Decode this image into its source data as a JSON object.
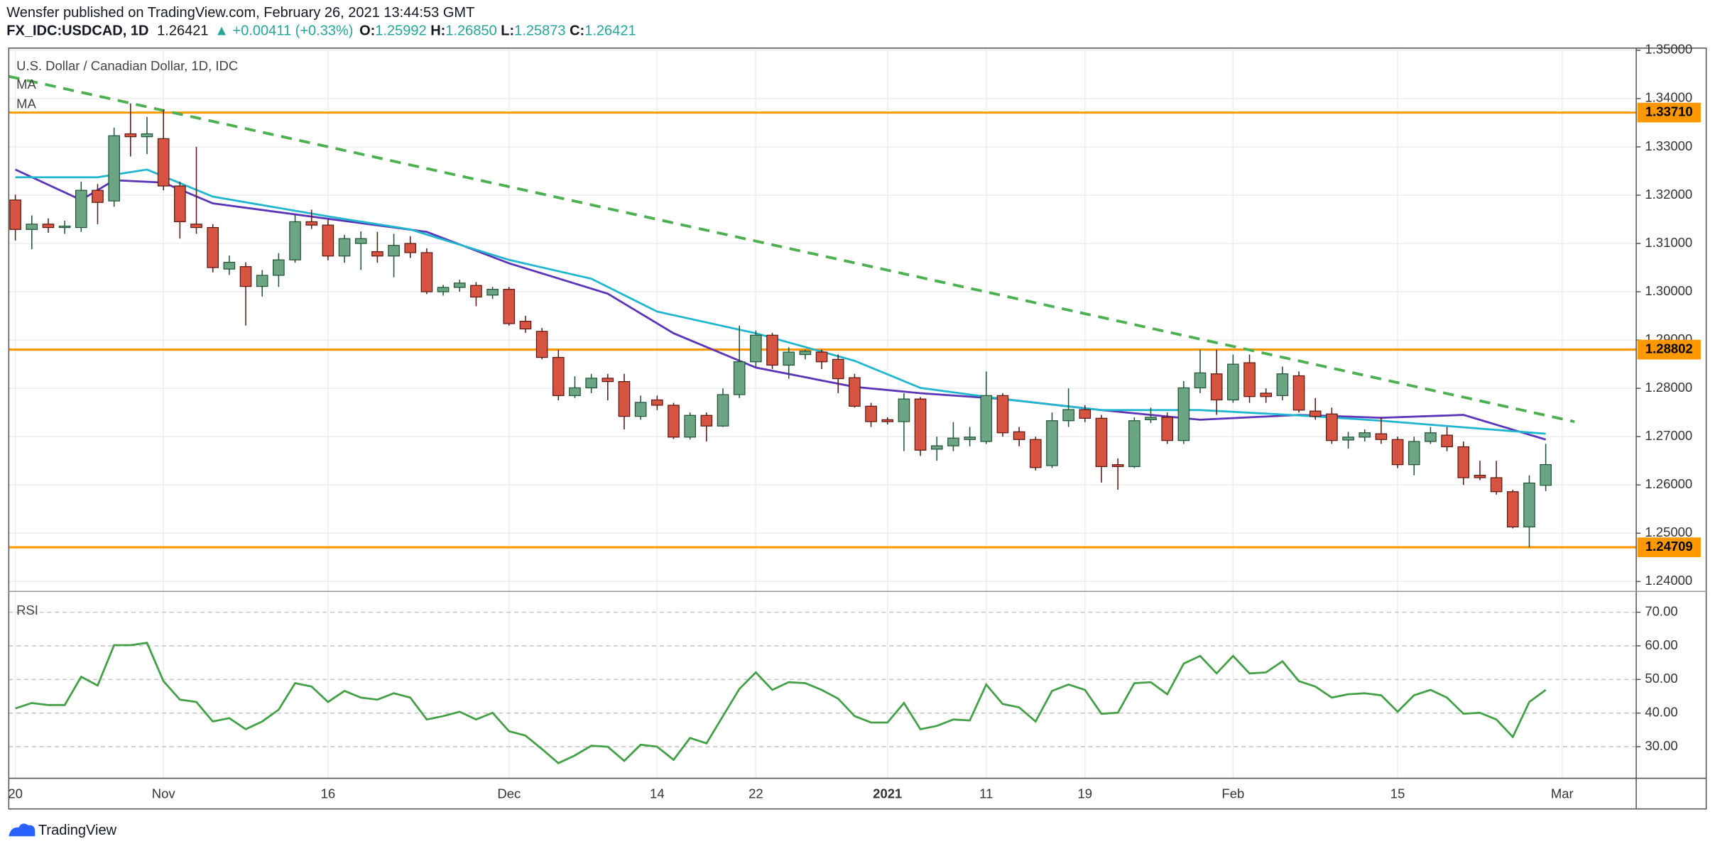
{
  "header": {
    "published": "Wensfer published on TradingView.com, February 26, 2021 13:44:53 GMT",
    "symbol": "FX_IDC:USDCAD, 1D",
    "last": "1.26421",
    "change": "▲ +0.00411 (+0.33%)",
    "ohlc": [
      {
        "label": "O:",
        "value": "1.25992"
      },
      {
        "label": "H:",
        "value": "1.26850"
      },
      {
        "label": "L:",
        "value": "1.25873"
      },
      {
        "label": "C:",
        "value": "1.26421"
      }
    ]
  },
  "footer": {
    "brand": "TradingView"
  },
  "chart_data": {
    "type": "candlestick",
    "title": "U.S. Dollar / Canadian Dollar, 1D, IDC",
    "up_color": "#6ba583",
    "down_color": "#d75442",
    "up_border": "#225437",
    "down_border": "#5b1a13",
    "open": [
      1.319,
      1.3129,
      1.314,
      1.3133,
      1.3133,
      1.321,
      1.3188,
      1.3327,
      1.3321,
      1.3317,
      1.3219,
      1.314,
      1.3133,
      1.3047,
      1.3052,
      1.3011,
      1.3034,
      1.3066,
      1.3145,
      1.3138,
      1.3074,
      1.31,
      1.3083,
      1.3074,
      1.31,
      1.3081,
      1.3,
      1.3009,
      1.3013,
      1.2993,
      1.3005,
      1.2939,
      1.2918,
      1.2864,
      1.2785,
      1.2801,
      1.2821,
      1.2814,
      1.2742,
      1.2776,
      1.2765,
      1.2699,
      1.2744,
      1.2722,
      1.2787,
      1.2855,
      1.291,
      1.2848,
      1.287,
      1.2875,
      1.286,
      1.2822,
      1.2763,
      1.2735,
      1.2731,
      1.2778,
      1.2674,
      1.2681,
      1.2694,
      1.269,
      1.2785,
      1.271,
      1.2694,
      1.264,
      1.2733,
      1.2756,
      1.2738,
      1.2642,
      1.2638,
      1.2735,
      1.274,
      1.2692,
      1.2801,
      1.283,
      1.2776,
      1.2853,
      1.279,
      1.2785,
      1.2826,
      1.2753,
      1.2747,
      1.2693,
      1.2699,
      1.2706,
      1.2694,
      1.2642,
      1.269,
      1.2703,
      1.2679,
      1.262,
      1.2615,
      1.2586,
      1.2513,
      1.25992
    ],
    "high": [
      1.3201,
      1.3158,
      1.3152,
      1.3147,
      1.3228,
      1.3223,
      1.334,
      1.339,
      1.3362,
      1.3377,
      1.3228,
      1.33,
      1.314,
      1.3075,
      1.3061,
      1.3045,
      1.308,
      1.316,
      1.317,
      1.315,
      1.3118,
      1.3125,
      1.3124,
      1.312,
      1.3115,
      1.309,
      1.3014,
      1.3025,
      1.302,
      1.301,
      1.301,
      1.295,
      1.2925,
      1.288,
      1.2825,
      1.283,
      1.283,
      1.283,
      1.2785,
      1.2785,
      1.277,
      1.275,
      1.275,
      1.28,
      1.293,
      1.292,
      1.2915,
      1.2885,
      1.288,
      1.288,
      1.287,
      1.283,
      1.277,
      1.274,
      1.279,
      1.2782,
      1.27,
      1.273,
      1.272,
      1.2835,
      1.279,
      1.272,
      1.27,
      1.275,
      1.28,
      1.2765,
      1.2745,
      1.2655,
      1.274,
      1.276,
      1.275,
      1.2815,
      1.288,
      1.288,
      1.287,
      1.287,
      1.28,
      1.2845,
      1.2835,
      1.278,
      1.276,
      1.271,
      1.2715,
      1.274,
      1.27,
      1.27,
      1.272,
      1.272,
      1.269,
      1.265,
      1.265,
      1.259,
      1.262,
      1.2685
    ],
    "low": [
      1.3106,
      1.3088,
      1.3122,
      1.312,
      1.3124,
      1.314,
      1.3176,
      1.328,
      1.3285,
      1.321,
      1.311,
      1.312,
      1.304,
      1.3035,
      1.293,
      1.299,
      1.301,
      1.306,
      1.313,
      1.3065,
      1.306,
      1.3045,
      1.306,
      1.303,
      1.307,
      1.2995,
      1.2992,
      1.3,
      1.297,
      1.2985,
      1.293,
      1.2915,
      1.286,
      1.2775,
      1.278,
      1.279,
      1.2775,
      1.2715,
      1.2735,
      1.2755,
      1.2695,
      1.2694,
      1.269,
      1.272,
      1.278,
      1.2845,
      1.284,
      1.282,
      1.286,
      1.284,
      1.279,
      1.276,
      1.272,
      1.2725,
      1.267,
      1.266,
      1.265,
      1.267,
      1.268,
      1.2685,
      1.27,
      1.268,
      1.263,
      1.2635,
      1.272,
      1.273,
      1.2605,
      1.259,
      1.2635,
      1.2728,
      1.2685,
      1.2685,
      1.279,
      1.2745,
      1.277,
      1.277,
      1.277,
      1.2775,
      1.275,
      1.2735,
      1.2685,
      1.2675,
      1.269,
      1.2685,
      1.2635,
      1.262,
      1.2685,
      1.267,
      1.26,
      1.261,
      1.258,
      1.251,
      1.2471,
      1.25873
    ],
    "close": [
      1.3129,
      1.314,
      1.3133,
      1.3136,
      1.321,
      1.3185,
      1.3323,
      1.3321,
      1.3327,
      1.3219,
      1.3145,
      1.3133,
      1.305,
      1.3061,
      1.3011,
      1.3034,
      1.3066,
      1.3145,
      1.3138,
      1.3074,
      1.311,
      1.311,
      1.3074,
      1.3096,
      1.3081,
      1.3,
      1.3009,
      1.3018,
      1.2989,
      1.3005,
      1.2934,
      1.2923,
      1.2864,
      1.2785,
      1.2801,
      1.2821,
      1.2814,
      1.2742,
      1.2771,
      1.2765,
      1.2699,
      1.2744,
      1.2722,
      1.2787,
      1.2855,
      1.291,
      1.2848,
      1.2875,
      1.2877,
      1.2855,
      1.282,
      1.2763,
      1.2731,
      1.2731,
      1.2778,
      1.2672,
      1.2681,
      1.2697,
      1.2699,
      1.2785,
      1.2708,
      1.2694,
      1.2636,
      1.2733,
      1.2756,
      1.2738,
      1.2638,
      1.2638,
      1.2733,
      1.274,
      1.2692,
      1.2801,
      1.2832,
      1.2776,
      1.285,
      1.2783,
      1.2783,
      1.283,
      1.2755,
      1.2742,
      1.2692,
      1.2699,
      1.2708,
      1.2694,
      1.2642,
      1.269,
      1.2708,
      1.2679,
      1.2615,
      1.2615,
      1.2586,
      1.2513,
      1.2604,
      1.26421
    ],
    "overlays": [
      {
        "name": "MA",
        "color": "#5b34b8",
        "x": [
          0,
          4,
          6,
          9,
          12,
          19,
          25,
          30,
          36,
          40,
          45,
          51,
          55,
          60,
          66,
          72,
          78,
          83,
          88,
          93
        ],
        "values": [
          1.3253,
          1.319,
          1.3231,
          1.3226,
          1.3183,
          1.3151,
          1.3124,
          1.3059,
          1.2996,
          1.2914,
          1.2843,
          1.2803,
          1.279,
          1.2778,
          1.2755,
          1.2735,
          1.2745,
          1.2739,
          1.2745,
          1.2694
        ]
      },
      {
        "name": "MA",
        "color": "#1fb6d0",
        "x": [
          0,
          5,
          8,
          12,
          19,
          24,
          30,
          35,
          39,
          45,
          51,
          55,
          60,
          66,
          72,
          78,
          83,
          87,
          93
        ],
        "values": [
          1.3237,
          1.3237,
          1.3253,
          1.3197,
          1.3156,
          1.3129,
          1.3066,
          1.3027,
          1.2959,
          1.2914,
          1.2857,
          1.2801,
          1.2778,
          1.2755,
          1.2755,
          1.2744,
          1.2733,
          1.2722,
          1.2706
        ]
      }
    ],
    "trendline": {
      "color": "#4caf50",
      "x": [
        -0.4,
        94.75
      ],
      "values": [
        1.3446,
        1.2731
      ]
    },
    "levels": [
      {
        "value": 1.3371,
        "label": "1.33710"
      },
      {
        "value": 1.28802,
        "label": "1.28802"
      },
      {
        "value": 1.24709,
        "label": "1.24709"
      }
    ],
    "level_color": "#ff9800",
    "xlim": [
      -0.4,
      98.5
    ],
    "xticks": [
      {
        "value": 0,
        "label": "20"
      },
      {
        "value": 9,
        "label": "Nov"
      },
      {
        "value": 19,
        "label": "16"
      },
      {
        "value": 30,
        "label": "Dec"
      },
      {
        "value": 39,
        "label": "14"
      },
      {
        "value": 45,
        "label": "22"
      },
      {
        "value": 53,
        "label": "2021"
      },
      {
        "value": 59,
        "label": "11"
      },
      {
        "value": 65,
        "label": "19"
      },
      {
        "value": 74,
        "label": "Feb"
      },
      {
        "value": 84,
        "label": "15"
      },
      {
        "value": 94,
        "label": "Mar"
      }
    ],
    "ylim": [
      1.23796,
      1.35045
    ],
    "yticks": [
      {
        "value": 1.35,
        "label": "1.35000"
      },
      {
        "value": 1.34,
        "label": "1.34000"
      },
      {
        "value": 1.33,
        "label": "1.33000"
      },
      {
        "value": 1.32,
        "label": "1.32000"
      },
      {
        "value": 1.31,
        "label": "1.31000"
      },
      {
        "value": 1.3,
        "label": "1.30000"
      },
      {
        "value": 1.29,
        "label": "1.29000"
      },
      {
        "value": 1.28,
        "label": "1.28000"
      },
      {
        "value": 1.27,
        "label": "1.27000"
      },
      {
        "value": 1.26,
        "label": "1.26000"
      },
      {
        "value": 1.25,
        "label": "1.25000"
      },
      {
        "value": 1.24,
        "label": "1.24000"
      }
    ],
    "grid": true
  },
  "rsi": {
    "type": "line",
    "title": "RSI",
    "color": "#43a047",
    "values": [
      41.4,
      43,
      42.4,
      42.4,
      50.8,
      48.2,
      60.2,
      60.2,
      60.9,
      49.5,
      44,
      43.3,
      37.5,
      38.5,
      35.2,
      37.5,
      41,
      48.9,
      47.9,
      43.3,
      46.6,
      44.6,
      44,
      45.9,
      44.6,
      38.1,
      39.1,
      40.4,
      38.1,
      40.1,
      34.6,
      33.3,
      29.3,
      25.1,
      27.4,
      30.3,
      30,
      25.8,
      30.6,
      30,
      26.1,
      32.6,
      31,
      39.1,
      47.2,
      52.1,
      46.9,
      49.2,
      48.9,
      46.9,
      44.3,
      39.1,
      37.2,
      37.2,
      43,
      35.2,
      36.2,
      38.1,
      37.8,
      48.5,
      42.7,
      41.7,
      37.5,
      46.6,
      48.5,
      46.9,
      39.8,
      40.1,
      48.9,
      49.2,
      45.6,
      54.7,
      57,
      51.8,
      57,
      51.8,
      52.1,
      55.4,
      49.5,
      47.9,
      44.6,
      45.6,
      45.9,
      45.3,
      40.4,
      45.3,
      46.9,
      44.6,
      39.8,
      40.1,
      38.1,
      32.9,
      43.3,
      46.9
    ],
    "ylim": [
      20.6,
      76.2
    ],
    "yticks": [
      {
        "value": 70,
        "label": "70.00"
      },
      {
        "value": 60,
        "label": "60.00"
      },
      {
        "value": 50,
        "label": "50.00"
      },
      {
        "value": 40,
        "label": "40.00"
      },
      {
        "value": 30,
        "label": "30.00"
      }
    ]
  }
}
